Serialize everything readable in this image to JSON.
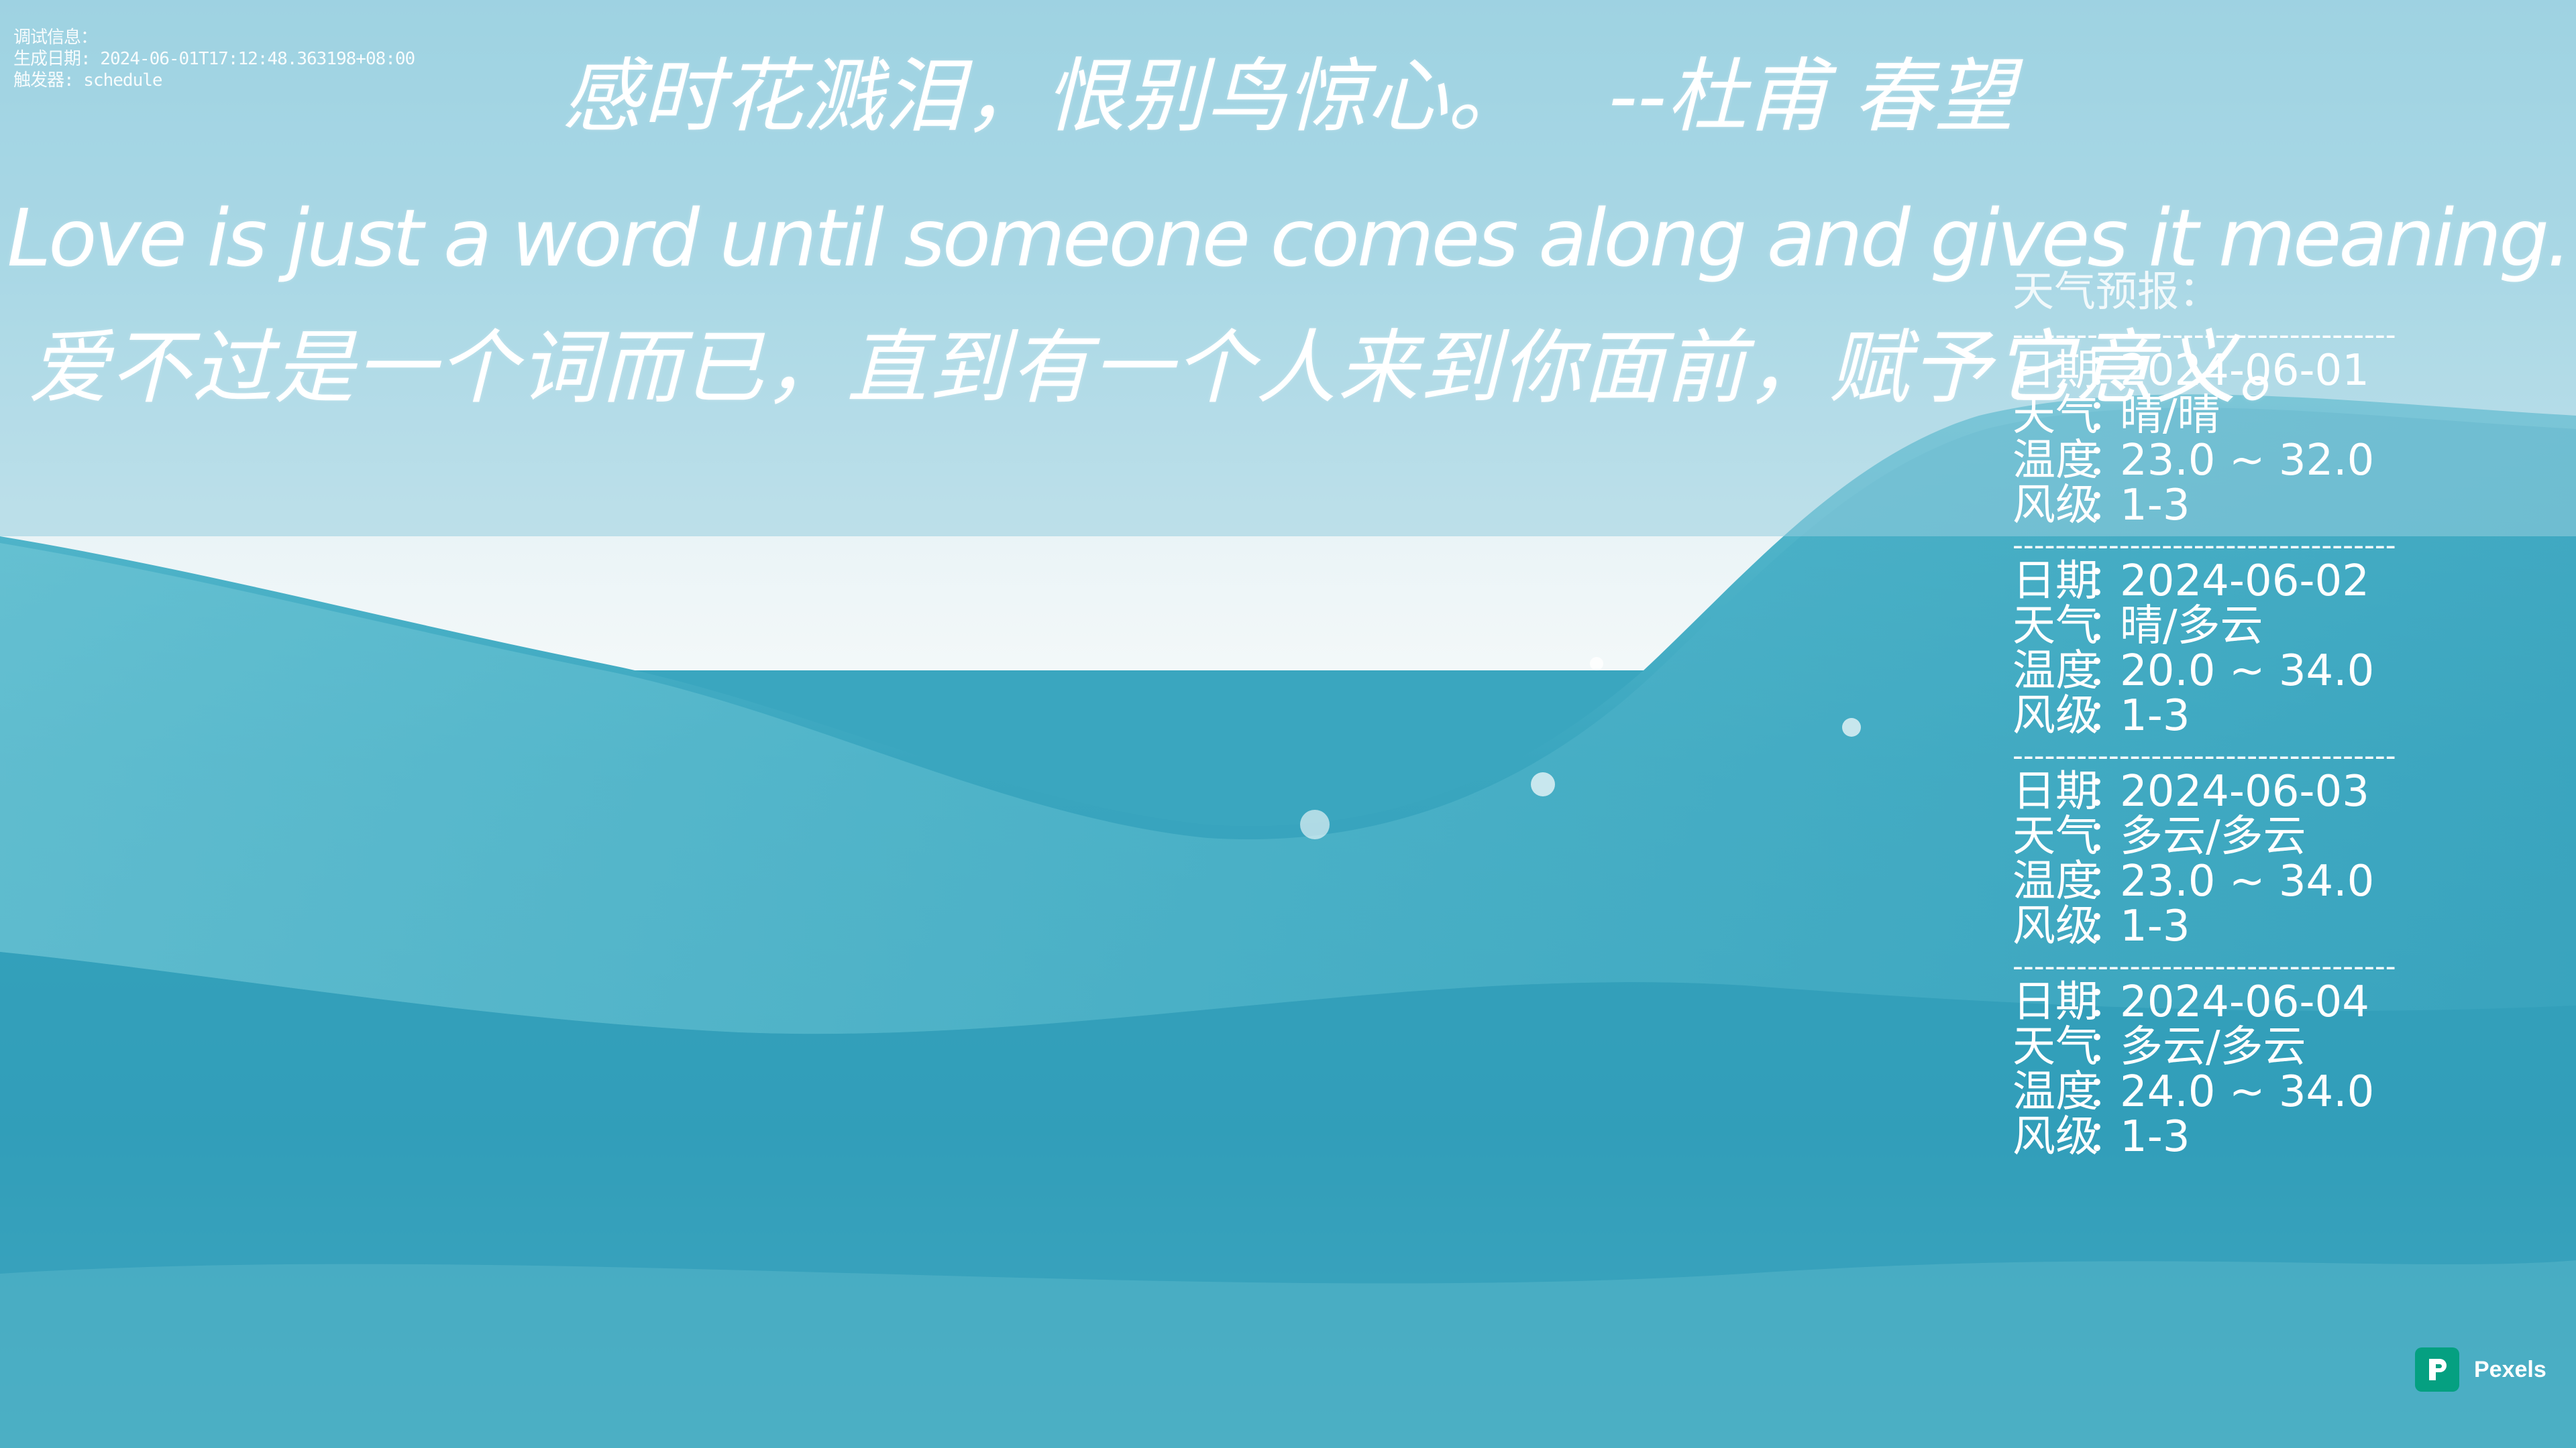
{
  "debug": {
    "label": "调试信息：",
    "generated": "生成日期: 2024-06-01T17:12:48.363198+08:00",
    "trigger": "触发器: schedule"
  },
  "poem": {
    "line": "感时花溅泪，恨别鸟惊心。",
    "author": "--杜甫 春望"
  },
  "quote": {
    "en": "Love is just a word until someone comes along and gives it meaning.",
    "zh": "爱不过是一个词而已，直到有一个人来到你面前，赋予它意义。"
  },
  "weather": {
    "title": "天气预报：",
    "separator": "------------------------------------",
    "labels": {
      "date": "日期",
      "weather": "天气",
      "temp": "温度",
      "wind": "风级",
      "colon": "："
    },
    "days": [
      {
        "date": "2024-06-01",
        "weather": "晴/晴",
        "temp": "23.0 ~ 32.0",
        "wind": "1-3"
      },
      {
        "date": "2024-06-02",
        "weather": "晴/多云",
        "temp": "20.0 ~ 34.0",
        "wind": "1-3"
      },
      {
        "date": "2024-06-03",
        "weather": "多云/多云",
        "temp": "23.0 ~ 34.0",
        "wind": "1-3"
      },
      {
        "date": "2024-06-04",
        "weather": "多云/多云",
        "temp": "24.0 ~ 34.0",
        "wind": "1-3"
      }
    ]
  },
  "credit": {
    "name": "Pexels",
    "brand_color": "#05A081"
  },
  "colors": {
    "text": "#FFFFFF",
    "sea": "#3AA6BF",
    "sky": "#C2E4EE"
  }
}
